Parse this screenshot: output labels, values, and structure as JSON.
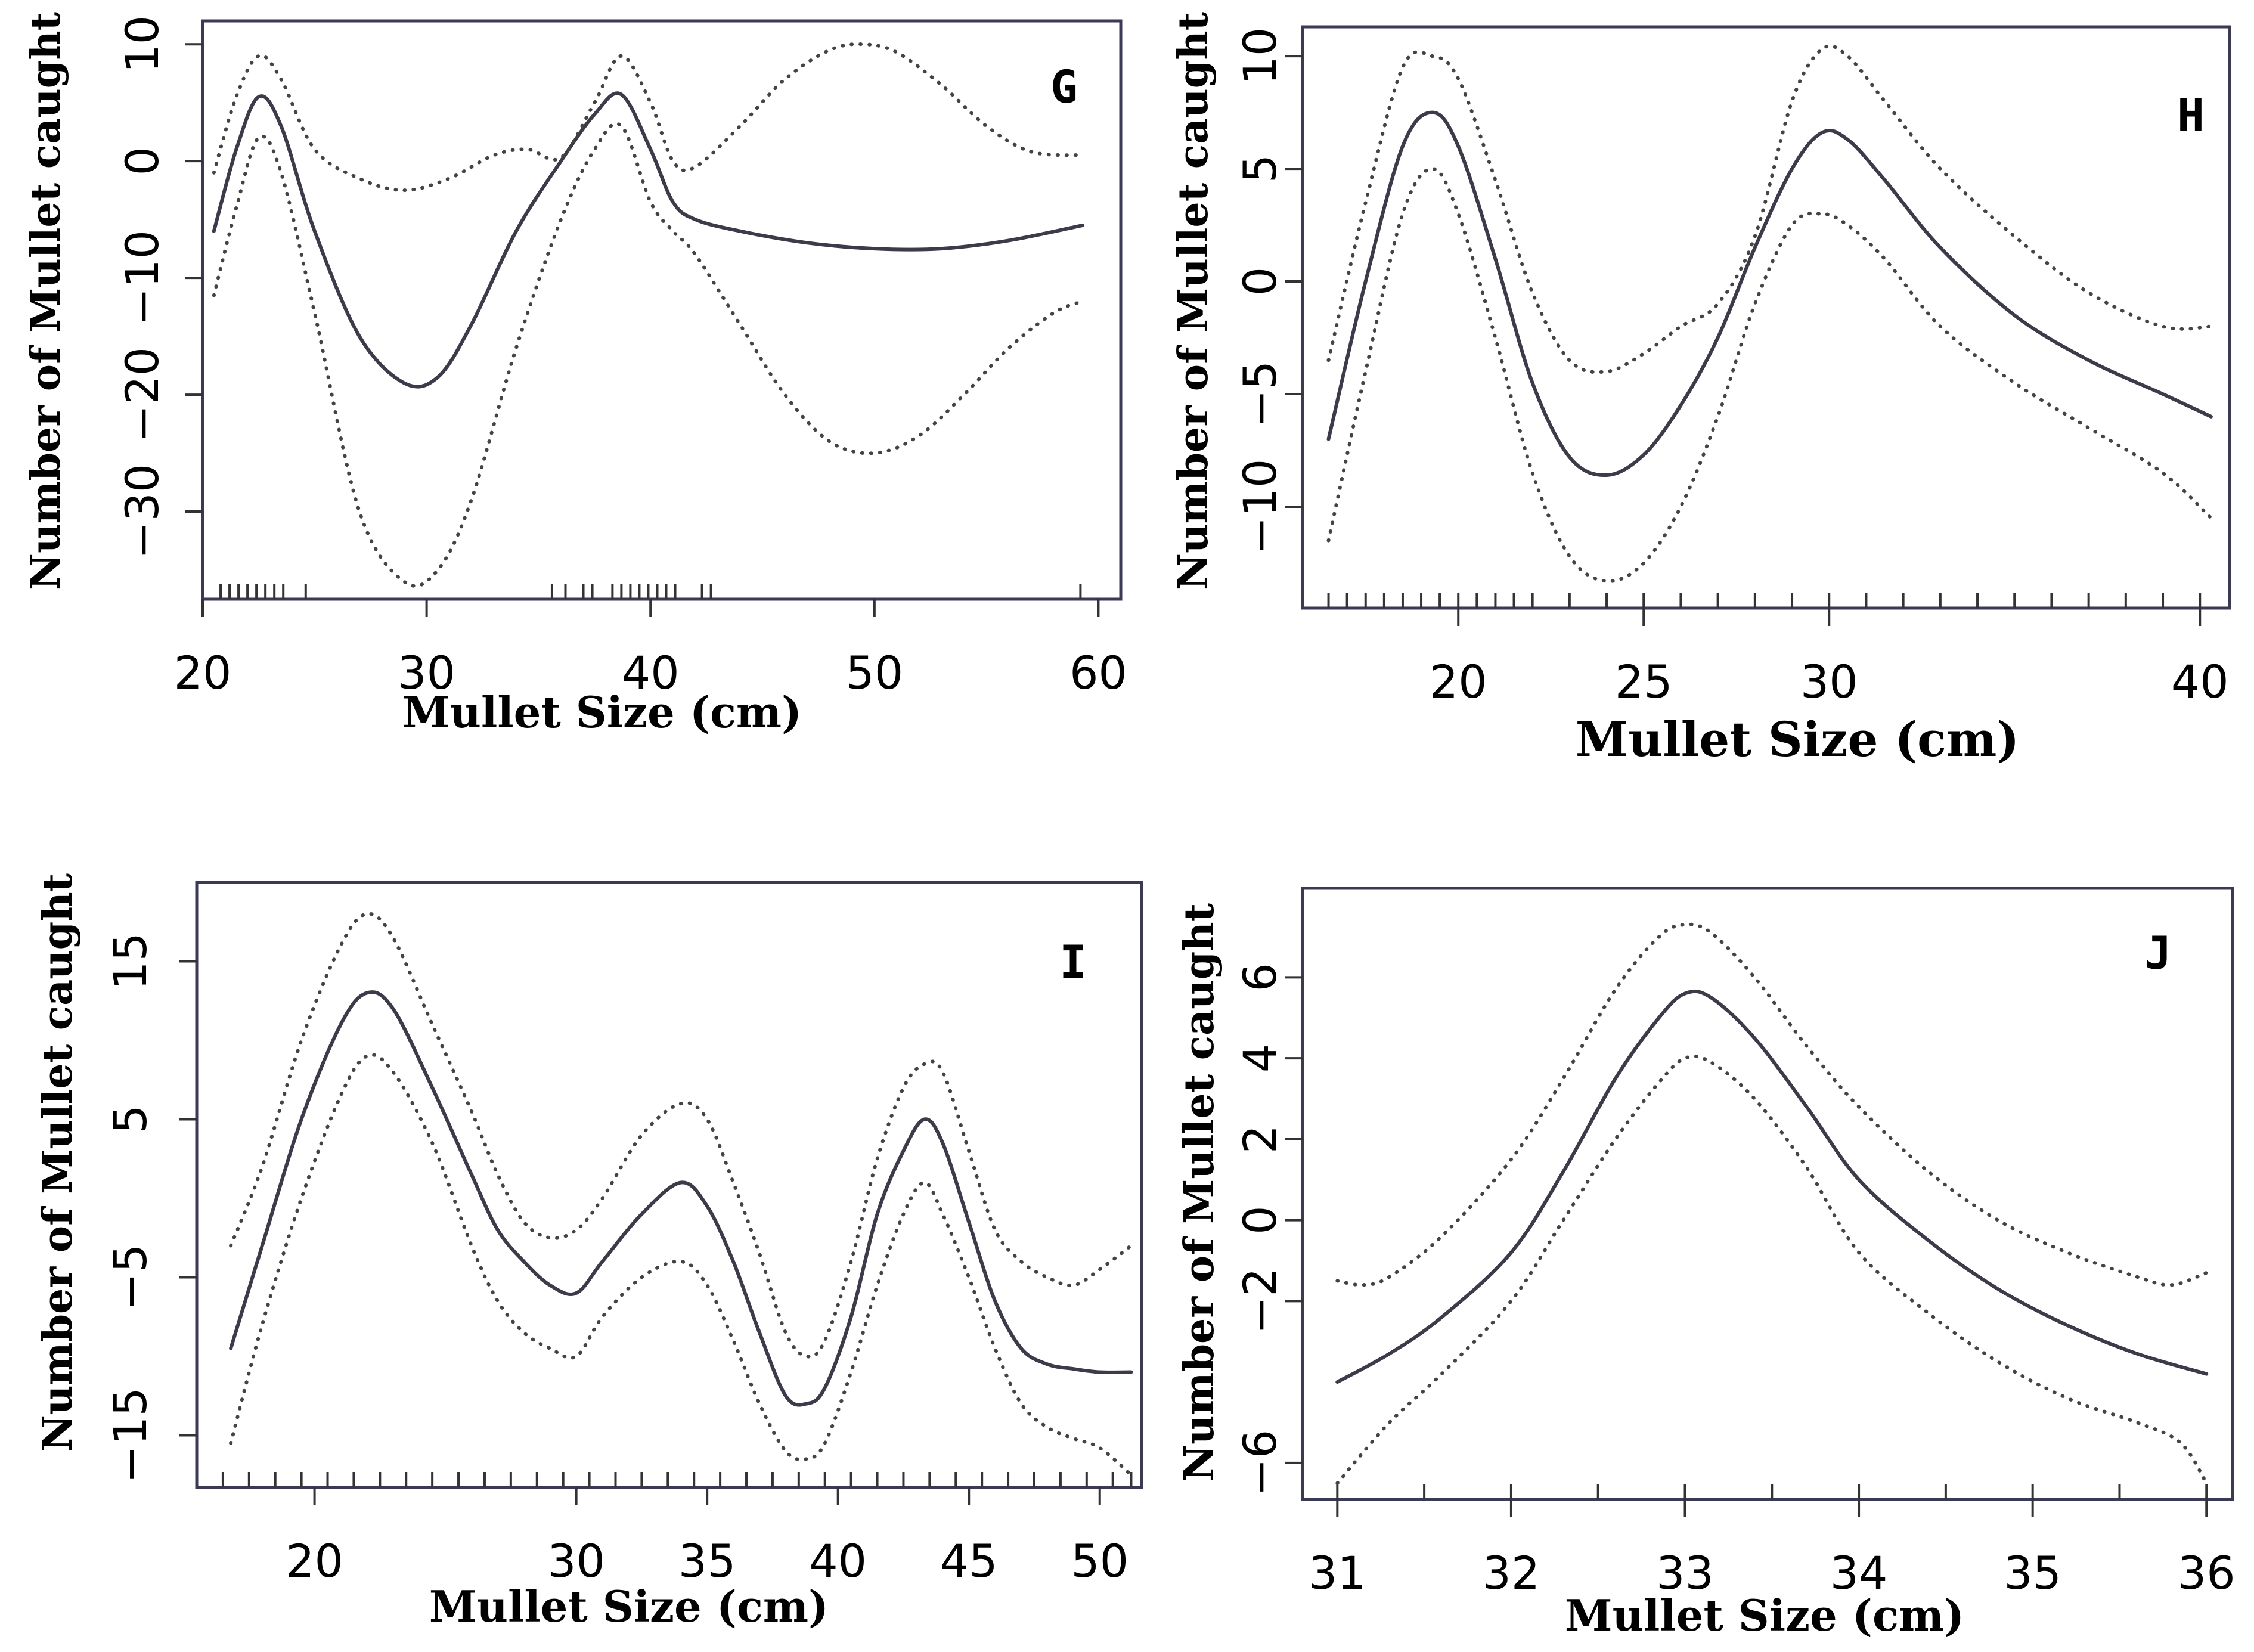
{
  "figure": {
    "description_labels": [
      "G",
      "H",
      "I",
      "J"
    ]
  },
  "chart_data": [
    {
      "type": "line",
      "panel_label": "G",
      "xlabel": "Mullet Size (cm)",
      "ylabel": "Number of Mullet caught",
      "xlim": [
        20,
        61
      ],
      "ylim": [
        -37.5,
        12
      ],
      "xticks": [
        20,
        30,
        40,
        50,
        60
      ],
      "yticks": [
        -30,
        -20,
        -10,
        0,
        10
      ],
      "ytick_labels": [
        "−30",
        "−20",
        "−10",
        "0",
        "10"
      ],
      "rug": [
        20.8,
        21.2,
        21.6,
        22.0,
        22.4,
        22.8,
        23.2,
        23.6,
        24.6,
        35.6,
        36.2,
        37.0,
        37.4,
        38.3,
        38.7,
        39.1,
        39.5,
        39.9,
        40.3,
        40.7,
        41.1,
        42.3,
        42.7,
        59.2
      ],
      "series": [
        {
          "name": "fit",
          "style": "solid",
          "x": [
            20.5,
            21.5,
            22.5,
            23.5,
            25,
            27,
            29,
            30.5,
            32,
            34,
            36,
            37.5,
            38.7,
            40,
            41,
            42,
            44,
            47,
            50,
            53,
            56,
            59.3
          ],
          "y": [
            -6,
            1,
            5.5,
            3,
            -6,
            -15,
            -19,
            -18.5,
            -14,
            -6,
            0,
            4,
            5.7,
            1,
            -3.5,
            -5,
            -6,
            -7,
            -7.5,
            -7.5,
            -6.8,
            -5.5
          ]
        },
        {
          "name": "upper",
          "style": "dotted",
          "x": [
            20.5,
            21.5,
            22.5,
            23.5,
            25,
            27,
            29,
            31,
            33,
            34.5,
            36,
            37.5,
            38.7,
            40,
            41,
            42,
            44,
            46,
            48,
            49.5,
            51,
            53,
            55,
            57,
            59.3
          ],
          "y": [
            -1,
            5.5,
            9,
            7,
            1,
            -1.5,
            -2.5,
            -1.5,
            0.5,
            1,
            0.3,
            5,
            9,
            5,
            0,
            -0.5,
            3,
            7,
            9.5,
            10,
            9.3,
            6.5,
            3,
            0.8,
            0.5
          ]
        },
        {
          "name": "lower",
          "style": "dotted",
          "x": [
            20.5,
            21.5,
            22.5,
            23.5,
            25,
            27,
            29,
            30.5,
            32,
            34,
            36,
            37.5,
            38.7,
            40,
            41,
            42,
            44,
            46,
            48,
            50,
            52,
            54,
            56,
            58,
            59.3
          ],
          "y": [
            -11.5,
            -4,
            2,
            -1,
            -13,
            -30,
            -36,
            -35,
            -29,
            -16,
            -5,
            1,
            3,
            -3.5,
            -6,
            -8,
            -14,
            -20,
            -24,
            -25,
            -23.5,
            -20,
            -16,
            -13,
            -12
          ]
        }
      ]
    },
    {
      "type": "line",
      "panel_label": "H",
      "xlabel": "Mullet Size (cm)",
      "ylabel": "Number of Mullet caught",
      "xlim": [
        15.8,
        40.8
      ],
      "ylim": [
        -14.5,
        11.3
      ],
      "xticks": [
        20,
        25,
        30,
        40
      ],
      "yticks": [
        -10,
        -5,
        0,
        5,
        10
      ],
      "ytick_labels": [
        "−10",
        "−5",
        "0",
        "5",
        "10"
      ],
      "rug": [
        16.5,
        17.0,
        17.5,
        18.0,
        18.5,
        19.0,
        19.5,
        20.0,
        20.5,
        21.0,
        21.5,
        22.0,
        23.0,
        24.0,
        25.0,
        26.0,
        27.0,
        28.0,
        29.0,
        30.0,
        31.0,
        32.0,
        33.0,
        34.0,
        35.0,
        36.0,
        37.0,
        38.0,
        39.0,
        40.0
      ],
      "series": [
        {
          "name": "fit",
          "style": "solid",
          "x": [
            16.5,
            17.5,
            18.5,
            19.3,
            20,
            21,
            22,
            23,
            24,
            25,
            26,
            27,
            28,
            29,
            29.8,
            30.5,
            31.5,
            33,
            35,
            37,
            39,
            40.3
          ],
          "y": [
            -7,
            0,
            6,
            7.5,
            6,
            1,
            -4.5,
            -7.8,
            -8.6,
            -7.7,
            -5.5,
            -2.5,
            1.5,
            5,
            6.6,
            6.3,
            4.5,
            1.5,
            -1.5,
            -3.5,
            -5,
            -6
          ]
        },
        {
          "name": "upper",
          "style": "dotted",
          "x": [
            16.5,
            17.5,
            18.5,
            19.3,
            20,
            21,
            22,
            23,
            24,
            25,
            26,
            27,
            28,
            29,
            29.8,
            30.5,
            31.5,
            33,
            35,
            37,
            39,
            40.3
          ],
          "y": [
            -3.5,
            3.5,
            9.5,
            10,
            9,
            4.5,
            -0.5,
            -3.5,
            -4,
            -3.2,
            -2,
            -1,
            2,
            8,
            10.3,
            10,
            8,
            5,
            2,
            -0.5,
            -2,
            -2
          ]
        },
        {
          "name": "lower",
          "style": "dotted",
          "x": [
            16.5,
            17.5,
            18.5,
            19.3,
            20,
            21,
            22,
            23,
            24,
            25,
            26,
            27,
            28,
            29,
            29.8,
            30.5,
            31.5,
            33,
            35,
            37,
            39,
            40.3
          ],
          "y": [
            -11.5,
            -4,
            3,
            5,
            3,
            -2.5,
            -8.5,
            -12.2,
            -13.3,
            -12.5,
            -10,
            -6,
            -1,
            2.5,
            3,
            2.5,
            1,
            -2,
            -4.5,
            -6.5,
            -8.5,
            -10.5
          ]
        }
      ]
    },
    {
      "type": "line",
      "panel_label": "I",
      "xlabel": "Mullet Size (cm)",
      "ylabel": "Number of Mullet caught",
      "xlim": [
        15.5,
        51.6
      ],
      "ylim": [
        -18.3,
        20
      ],
      "xticks": [
        20,
        30,
        35,
        40,
        45,
        50
      ],
      "yticks": [
        -15,
        -5,
        5,
        15
      ],
      "ytick_labels": [
        "−15",
        "−5",
        "5",
        "15"
      ],
      "rug": [
        16.5,
        17.5,
        18.5,
        19.5,
        20.5,
        21.5,
        22.5,
        23.5,
        24.5,
        25.5,
        26.5,
        27.5,
        28.5,
        29.5,
        30.5,
        31.5,
        32.5,
        33.5,
        34.5,
        35.5,
        36.5,
        37.5,
        38.5,
        39.5,
        40.5,
        41.5,
        42.5,
        43.5,
        44.5,
        45.5,
        46.5,
        47.5,
        48.5,
        49.5,
        50.5,
        51.2
      ],
      "series": [
        {
          "name": "fit",
          "style": "solid",
          "x": [
            16.8,
            18,
            19.5,
            21,
            22,
            23,
            24.5,
            26,
            27,
            28,
            29,
            30,
            31,
            32.5,
            34,
            35,
            36,
            37,
            38,
            38.8,
            39.5,
            40.5,
            41.5,
            42.5,
            43.3,
            44,
            45,
            46,
            47,
            48,
            49,
            50,
            51.2
          ],
          "y": [
            -9.5,
            -3,
            5,
            11,
            13,
            12,
            7,
            1.5,
            -2,
            -4,
            -5.5,
            -6,
            -4,
            -1,
            1,
            -0.5,
            -4,
            -8.5,
            -12.5,
            -13,
            -12,
            -7.5,
            -1,
            3,
            5,
            3.5,
            -1.5,
            -6.5,
            -9.5,
            -10.5,
            -10.8,
            -11,
            -11
          ]
        },
        {
          "name": "upper",
          "style": "dotted",
          "x": [
            16.8,
            18,
            19.5,
            21,
            22,
            23,
            24.5,
            26,
            27,
            28,
            29,
            30,
            31,
            32.5,
            34,
            35,
            36,
            37,
            38,
            38.8,
            39.5,
            40.5,
            41.5,
            42.5,
            43.3,
            44,
            45,
            46,
            47,
            48,
            49,
            50,
            51.2
          ],
          "y": [
            -3,
            2,
            10,
            16,
            18,
            16.5,
            11,
            5.5,
            1.5,
            -1.5,
            -2.5,
            -2,
            0,
            4,
            6,
            5,
            1,
            -3.5,
            -8.5,
            -10,
            -9,
            -4,
            2.5,
            7,
            8.5,
            8,
            3,
            -2,
            -4,
            -5,
            -5.5,
            -4.5,
            -3
          ]
        },
        {
          "name": "lower",
          "style": "dotted",
          "x": [
            16.8,
            18,
            19.5,
            21,
            22,
            23,
            24.5,
            26,
            27,
            28,
            29,
            30,
            31,
            32.5,
            34,
            35,
            36,
            37,
            38,
            38.8,
            39.5,
            40.5,
            41.5,
            42.5,
            43.3,
            44,
            45,
            46,
            47,
            48,
            49,
            50,
            51.2
          ],
          "y": [
            -15.5,
            -8,
            0,
            6.5,
            9,
            8,
            3.5,
            -3,
            -6.5,
            -8.5,
            -9.5,
            -10,
            -7.5,
            -5,
            -4,
            -5.5,
            -9,
            -13,
            -16,
            -16.5,
            -15.5,
            -11,
            -5.5,
            -1,
            1,
            -1,
            -5,
            -9.5,
            -13,
            -14.5,
            -15.2,
            -15.8,
            -17.5
          ]
        }
      ]
    },
    {
      "type": "line",
      "panel_label": "J",
      "xlabel": "Mullet Size (cm)",
      "ylabel": "Number of Mullet caught",
      "xlim": [
        30.8,
        36.15
      ],
      "ylim": [
        -6.9,
        8.2
      ],
      "xticks": [
        31,
        32,
        33,
        34,
        35,
        36
      ],
      "yticks": [
        -6,
        -2,
        0,
        2,
        4,
        6
      ],
      "ytick_labels": [
        "−6",
        "−2",
        "0",
        "2",
        "4",
        "6"
      ],
      "rug": [
        31.0,
        31.5,
        32.0,
        32.5,
        33.0,
        33.5,
        34.0,
        34.5,
        35.0,
        35.5,
        36.0
      ],
      "series": [
        {
          "name": "fit",
          "style": "solid",
          "x": [
            31,
            31.3,
            31.6,
            32,
            32.3,
            32.6,
            32.85,
            33,
            33.15,
            33.4,
            33.7,
            34,
            34.4,
            34.8,
            35.2,
            35.6,
            36
          ],
          "y": [
            -4,
            -3.3,
            -2.4,
            -0.8,
            1.2,
            3.5,
            5,
            5.6,
            5.5,
            4.5,
            2.8,
            1,
            -0.5,
            -1.7,
            -2.6,
            -3.3,
            -3.8
          ]
        },
        {
          "name": "upper",
          "style": "dotted",
          "x": [
            31,
            31.15,
            31.3,
            31.6,
            32,
            32.3,
            32.6,
            32.85,
            33,
            33.15,
            33.4,
            33.7,
            34,
            34.4,
            34.8,
            35.2,
            35.6,
            35.8,
            36
          ],
          "y": [
            -1.5,
            -1.6,
            -1.4,
            -0.4,
            1.5,
            3.5,
            5.7,
            7,
            7.3,
            7.1,
            6,
            4.3,
            2.8,
            1.2,
            0,
            -0.8,
            -1.4,
            -1.6,
            -1.3
          ]
        },
        {
          "name": "lower",
          "style": "dotted",
          "x": [
            31,
            31.3,
            31.6,
            32,
            32.3,
            32.6,
            32.85,
            33,
            33.15,
            33.4,
            33.7,
            34,
            34.4,
            34.8,
            35.2,
            35.6,
            35.85,
            36
          ],
          "y": [
            -6.5,
            -5,
            -3.8,
            -2,
            0,
            2,
            3.4,
            4,
            3.9,
            3,
            1.3,
            -0.8,
            -2.3,
            -3.5,
            -4.4,
            -5,
            -5.5,
            -6.5
          ]
        }
      ]
    }
  ]
}
